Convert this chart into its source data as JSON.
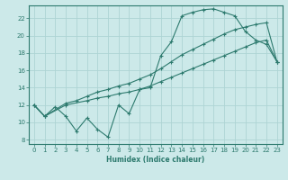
{
  "xlabel": "Humidex (Indice chaleur)",
  "bg_color": "#cce9e9",
  "grid_color": "#aed4d4",
  "line_color": "#2d7a6e",
  "xlim": [
    -0.5,
    23.5
  ],
  "ylim": [
    7.5,
    23.5
  ],
  "xticks": [
    0,
    1,
    2,
    3,
    4,
    5,
    6,
    7,
    8,
    9,
    10,
    11,
    12,
    13,
    14,
    15,
    16,
    17,
    18,
    19,
    20,
    21,
    22,
    23
  ],
  "yticks": [
    8,
    10,
    12,
    14,
    16,
    18,
    20,
    22
  ],
  "line1_x": [
    0,
    1,
    2,
    3,
    4,
    5,
    6,
    7,
    8,
    9,
    10,
    11,
    12,
    13,
    14,
    15,
    16,
    17,
    18,
    19,
    20,
    21,
    22,
    23
  ],
  "line1_y": [
    12.0,
    10.7,
    11.8,
    10.7,
    9.0,
    10.5,
    9.2,
    8.3,
    12.0,
    11.0,
    13.8,
    14.0,
    17.7,
    19.3,
    22.3,
    22.7,
    23.0,
    23.1,
    22.7,
    22.3,
    20.5,
    19.5,
    19.0,
    17.0
  ],
  "line2_x": [
    0,
    1,
    3,
    4,
    5,
    6,
    7,
    8,
    9,
    10,
    11,
    12,
    13,
    14,
    15,
    16,
    17,
    18,
    19,
    20,
    21,
    22,
    23
  ],
  "line2_y": [
    12.0,
    10.7,
    12.2,
    12.5,
    13.0,
    13.5,
    13.8,
    14.2,
    14.5,
    15.0,
    15.5,
    16.2,
    17.0,
    17.8,
    18.4,
    19.0,
    19.6,
    20.2,
    20.7,
    21.0,
    21.3,
    21.5,
    17.0
  ],
  "line3_x": [
    0,
    1,
    3,
    5,
    6,
    7,
    8,
    9,
    10,
    11,
    12,
    13,
    14,
    15,
    16,
    17,
    18,
    19,
    20,
    21,
    22,
    23
  ],
  "line3_y": [
    12.0,
    10.7,
    12.0,
    12.5,
    12.8,
    13.0,
    13.3,
    13.5,
    13.8,
    14.2,
    14.7,
    15.2,
    15.7,
    16.2,
    16.7,
    17.2,
    17.7,
    18.2,
    18.7,
    19.2,
    19.5,
    17.0
  ]
}
